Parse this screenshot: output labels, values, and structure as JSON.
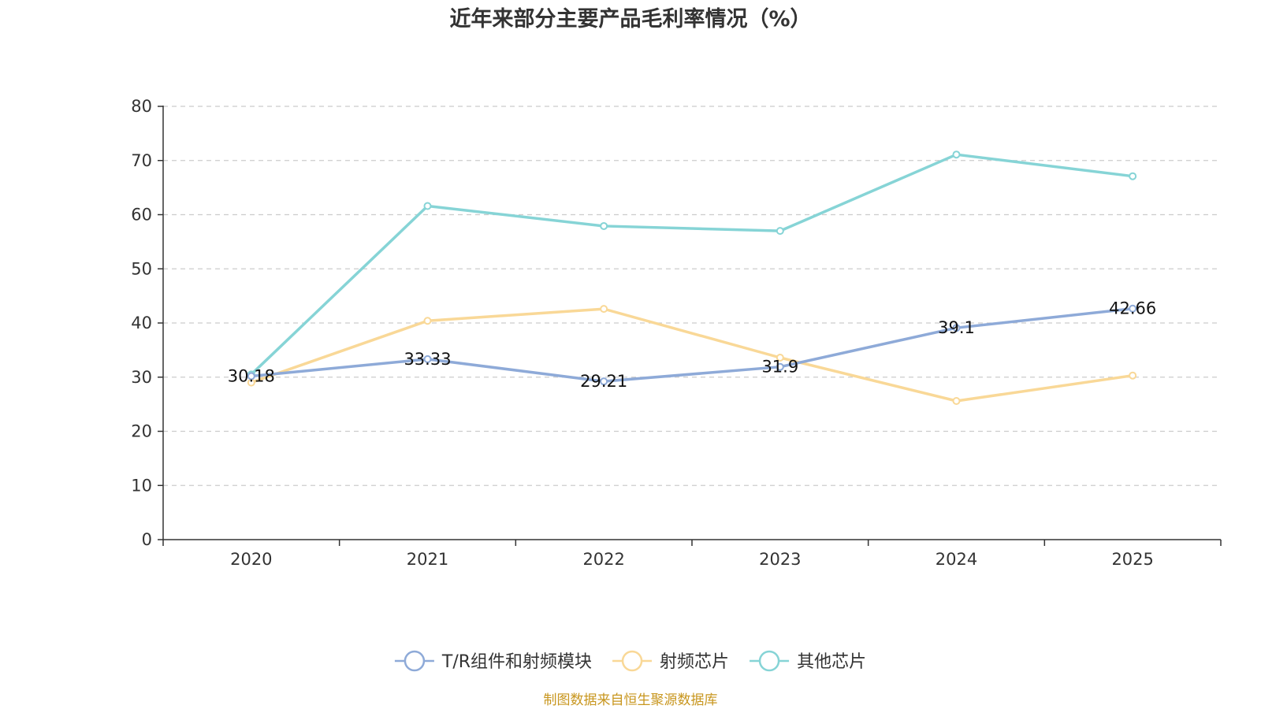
{
  "chart_data": {
    "type": "line",
    "title": "近年来部分主要产品毛利率情况（%）",
    "xlabel": "",
    "ylabel": "",
    "categories": [
      "2020",
      "2021",
      "2022",
      "2023",
      "2024",
      "2025"
    ],
    "ylim": [
      0,
      80
    ],
    "yticks": [
      "0",
      "10",
      "20",
      "30",
      "40",
      "50",
      "60",
      "70",
      "80"
    ],
    "grid": true,
    "legend_position": "bottom",
    "series": [
      {
        "name": "T/R组件和射频模块",
        "color": "#8eaad8",
        "values": [
          30.18,
          33.33,
          29.21,
          31.9,
          39.1,
          42.66
        ],
        "labels": [
          "30.18",
          "33.33",
          "29.21",
          "31.9",
          "39.1",
          "42.66"
        ]
      },
      {
        "name": "射频芯片",
        "color": "#f9d897",
        "values": [
          29.0,
          40.4,
          42.6,
          33.6,
          25.6,
          30.3
        ]
      },
      {
        "name": "其他芯片",
        "color": "#86d4d6",
        "values": [
          30.5,
          61.6,
          57.9,
          57.0,
          71.1,
          67.1
        ]
      }
    ],
    "source": "制图数据来自恒生聚源数据库"
  }
}
